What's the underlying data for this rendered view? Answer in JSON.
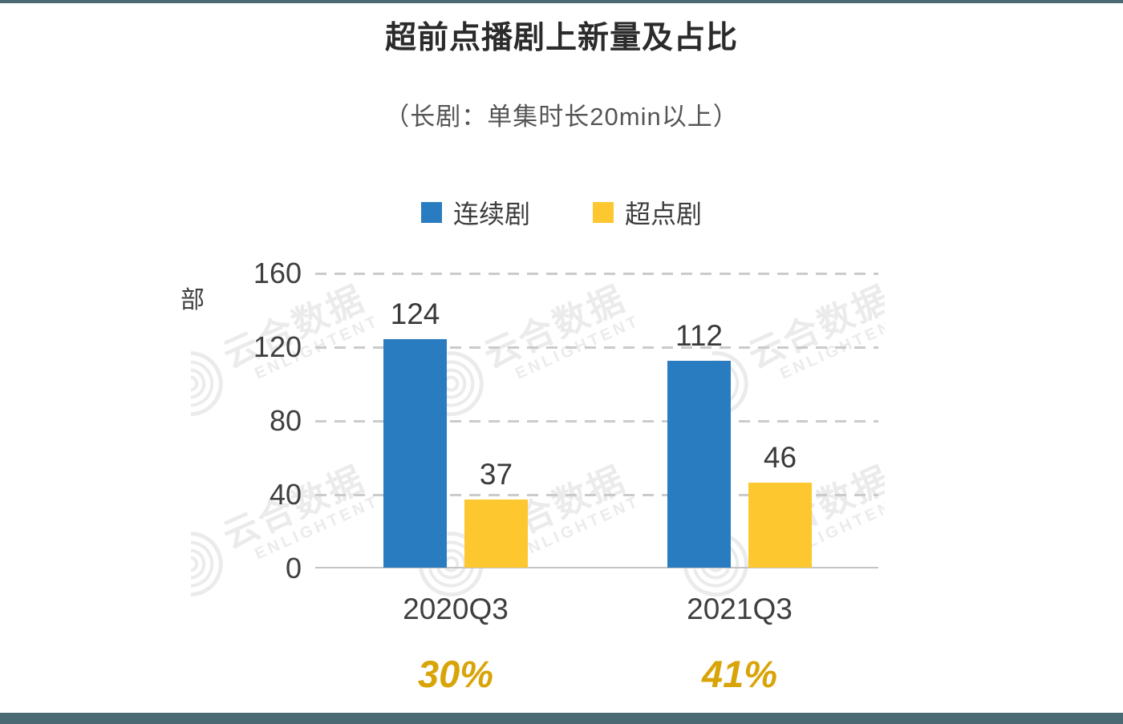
{
  "page": {
    "accent_color": "#4A6972"
  },
  "chart_data": {
    "type": "bar",
    "title": "超前点播剧上新量及占比",
    "subtitle": "（长剧：单集时长20min以上）",
    "unit_label": "部",
    "categories": [
      "2020Q3",
      "2021Q3"
    ],
    "series": [
      {
        "name": "连续剧",
        "color": "#2A7CC1",
        "values": [
          124,
          112
        ]
      },
      {
        "name": "超点剧",
        "color": "#FDC72F",
        "values": [
          37,
          46
        ]
      }
    ],
    "percent_labels": [
      "30%",
      "41%"
    ],
    "percent_color": "#D9A408",
    "ylim": [
      0,
      160
    ],
    "yticks": [
      "160",
      "120",
      "80",
      "40",
      "0"
    ],
    "grid": "dashed-horizontal",
    "legend_position": "top-center"
  },
  "watermark": {
    "cn": "云合数据",
    "en": "ENLIGHTENT"
  }
}
